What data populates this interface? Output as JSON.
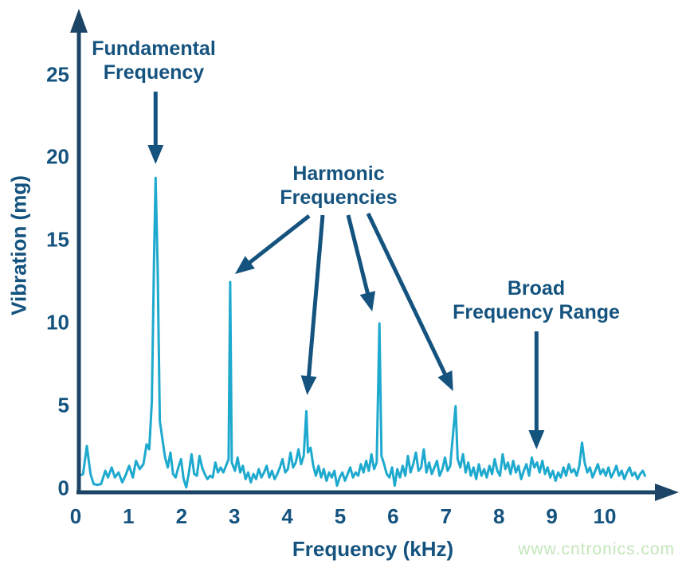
{
  "colors": {
    "text": "#15537f",
    "axis": "#1c4466",
    "line": "#1ea9ce",
    "watermark": "#c3e6ba"
  },
  "watermark": {
    "text": "www.cntronics.com"
  },
  "annotations": {
    "fundamental": {
      "line1": "Fundamental",
      "line2": "Frequency",
      "target_khz": 1.45
    },
    "harmonic": {
      "line1": "Harmonic",
      "line2": "Frequencies",
      "targets_khz": [
        2.86,
        4.3,
        5.68,
        7.12
      ]
    },
    "broad": {
      "line1": "Broad",
      "line2": "Frequency Range",
      "target_khz": 8.65
    }
  },
  "chart_data": {
    "type": "line",
    "title": "",
    "xlabel": "Frequency (kHz)",
    "ylabel": "Vibration (mg)",
    "xlim": [
      0,
      11.3
    ],
    "ylim": [
      0,
      27
    ],
    "x_ticks": [
      0,
      1,
      2,
      3,
      4,
      5,
      6,
      7,
      8,
      9,
      10
    ],
    "y_ticks": [
      0,
      5,
      10,
      15,
      20,
      25
    ],
    "grid": false,
    "legend": false,
    "peaks": {
      "fundamental": {
        "frequency_khz": 1.45,
        "amplitude_mg": 19
      },
      "harmonics": [
        {
          "frequency_khz": 2.86,
          "amplitude_mg": 12.7
        },
        {
          "frequency_khz": 4.3,
          "amplitude_mg": 4.9
        },
        {
          "frequency_khz": 5.68,
          "amplitude_mg": 10.2
        },
        {
          "frequency_khz": 7.12,
          "amplitude_mg": 5.2
        }
      ],
      "broad_range_khz": 8.65
    },
    "series": [
      {
        "name": "vibration-spectrum",
        "points": [
          [
            0.0,
            1.0
          ],
          [
            0.08,
            1.1
          ],
          [
            0.15,
            2.8
          ],
          [
            0.22,
            1.1
          ],
          [
            0.28,
            0.5
          ],
          [
            0.35,
            0.45
          ],
          [
            0.42,
            0.5
          ],
          [
            0.5,
            1.3
          ],
          [
            0.55,
            0.9
          ],
          [
            0.62,
            1.5
          ],
          [
            0.68,
            0.9
          ],
          [
            0.75,
            1.2
          ],
          [
            0.82,
            0.6
          ],
          [
            0.88,
            1.0
          ],
          [
            0.95,
            1.6
          ],
          [
            1.02,
            0.9
          ],
          [
            1.08,
            1.9
          ],
          [
            1.15,
            1.4
          ],
          [
            1.22,
            1.7
          ],
          [
            1.28,
            2.9
          ],
          [
            1.33,
            2.6
          ],
          [
            1.38,
            5.5
          ],
          [
            1.42,
            14.0
          ],
          [
            1.45,
            19.0
          ],
          [
            1.49,
            13.5
          ],
          [
            1.53,
            4.3
          ],
          [
            1.58,
            3.2
          ],
          [
            1.63,
            2.1
          ],
          [
            1.68,
            1.5
          ],
          [
            1.73,
            2.4
          ],
          [
            1.78,
            1.1
          ],
          [
            1.83,
            0.9
          ],
          [
            1.88,
            1.5
          ],
          [
            1.93,
            2.0
          ],
          [
            1.98,
            0.8
          ],
          [
            2.03,
            0.3
          ],
          [
            2.08,
            1.2
          ],
          [
            2.13,
            2.3
          ],
          [
            2.18,
            1.1
          ],
          [
            2.23,
            1.0
          ],
          [
            2.28,
            2.2
          ],
          [
            2.33,
            1.5
          ],
          [
            2.38,
            1.1
          ],
          [
            2.43,
            0.8
          ],
          [
            2.48,
            1.0
          ],
          [
            2.53,
            0.9
          ],
          [
            2.58,
            1.8
          ],
          [
            2.63,
            1.2
          ],
          [
            2.68,
            1.5
          ],
          [
            2.73,
            1.2
          ],
          [
            2.78,
            1.6
          ],
          [
            2.83,
            2.0
          ],
          [
            2.86,
            12.7
          ],
          [
            2.89,
            1.8
          ],
          [
            2.95,
            1.3
          ],
          [
            3.0,
            2.1
          ],
          [
            3.05,
            1.2
          ],
          [
            3.1,
            1.6
          ],
          [
            3.15,
            0.8
          ],
          [
            3.2,
            1.2
          ],
          [
            3.25,
            0.6
          ],
          [
            3.3,
            1.1
          ],
          [
            3.35,
            0.8
          ],
          [
            3.4,
            1.4
          ],
          [
            3.45,
            0.9
          ],
          [
            3.5,
            1.2
          ],
          [
            3.55,
            1.6
          ],
          [
            3.6,
            0.9
          ],
          [
            3.65,
            1.3
          ],
          [
            3.7,
            0.8
          ],
          [
            3.75,
            1.1
          ],
          [
            3.8,
            1.5
          ],
          [
            3.85,
            2.0
          ],
          [
            3.9,
            1.2
          ],
          [
            3.95,
            1.4
          ],
          [
            4.0,
            2.4
          ],
          [
            4.05,
            1.5
          ],
          [
            4.1,
            1.8
          ],
          [
            4.15,
            2.6
          ],
          [
            4.2,
            1.7
          ],
          [
            4.25,
            2.2
          ],
          [
            4.3,
            4.9
          ],
          [
            4.33,
            2.4
          ],
          [
            4.38,
            2.7
          ],
          [
            4.43,
            1.6
          ],
          [
            4.48,
            1.0
          ],
          [
            4.53,
            1.6
          ],
          [
            4.58,
            0.9
          ],
          [
            4.63,
            1.4
          ],
          [
            4.68,
            0.7
          ],
          [
            4.73,
            1.2
          ],
          [
            4.78,
            0.9
          ],
          [
            4.83,
            1.3
          ],
          [
            4.88,
            0.4
          ],
          [
            4.93,
            0.9
          ],
          [
            4.98,
            1.2
          ],
          [
            5.03,
            0.7
          ],
          [
            5.08,
            1.1
          ],
          [
            5.13,
            1.5
          ],
          [
            5.18,
            0.9
          ],
          [
            5.23,
            1.2
          ],
          [
            5.28,
            1.0
          ],
          [
            5.33,
            1.7
          ],
          [
            5.38,
            1.2
          ],
          [
            5.43,
            1.9
          ],
          [
            5.48,
            1.3
          ],
          [
            5.53,
            2.3
          ],
          [
            5.58,
            1.4
          ],
          [
            5.63,
            1.8
          ],
          [
            5.68,
            10.2
          ],
          [
            5.72,
            2.2
          ],
          [
            5.77,
            1.7
          ],
          [
            5.82,
            1.1
          ],
          [
            5.87,
            0.9
          ],
          [
            5.92,
            1.5
          ],
          [
            5.97,
            0.4
          ],
          [
            6.02,
            1.4
          ],
          [
            6.07,
            0.9
          ],
          [
            6.12,
            1.6
          ],
          [
            6.17,
            1.0
          ],
          [
            6.22,
            2.2
          ],
          [
            6.27,
            1.2
          ],
          [
            6.32,
            1.7
          ],
          [
            6.37,
            2.4
          ],
          [
            6.42,
            1.3
          ],
          [
            6.47,
            1.5
          ],
          [
            6.52,
            2.6
          ],
          [
            6.57,
            1.2
          ],
          [
            6.62,
            1.8
          ],
          [
            6.67,
            1.1
          ],
          [
            6.72,
            1.5
          ],
          [
            6.77,
            1.9
          ],
          [
            6.82,
            1.0
          ],
          [
            6.87,
            1.4
          ],
          [
            6.92,
            2.1
          ],
          [
            6.97,
            1.3
          ],
          [
            7.02,
            1.6
          ],
          [
            7.07,
            3.4
          ],
          [
            7.12,
            5.2
          ],
          [
            7.16,
            2.0
          ],
          [
            7.21,
            1.5
          ],
          [
            7.26,
            2.3
          ],
          [
            7.31,
            1.2
          ],
          [
            7.36,
            1.8
          ],
          [
            7.41,
            1.0
          ],
          [
            7.46,
            1.5
          ],
          [
            7.51,
            0.8
          ],
          [
            7.56,
            1.7
          ],
          [
            7.61,
            1.0
          ],
          [
            7.66,
            1.4
          ],
          [
            7.71,
            0.9
          ],
          [
            7.76,
            1.6
          ],
          [
            7.81,
            1.1
          ],
          [
            7.86,
            2.0
          ],
          [
            7.91,
            1.3
          ],
          [
            7.96,
            1.0
          ],
          [
            8.01,
            2.3
          ],
          [
            8.06,
            1.4
          ],
          [
            8.11,
            1.8
          ],
          [
            8.16,
            1.1
          ],
          [
            8.21,
            1.9
          ],
          [
            8.26,
            1.2
          ],
          [
            8.31,
            1.6
          ],
          [
            8.36,
            0.8
          ],
          [
            8.41,
            1.3
          ],
          [
            8.46,
            1.7
          ],
          [
            8.51,
            1.0
          ],
          [
            8.56,
            2.1
          ],
          [
            8.61,
            1.5
          ],
          [
            8.66,
            1.8
          ],
          [
            8.71,
            1.2
          ],
          [
            8.76,
            1.9
          ],
          [
            8.81,
            1.1
          ],
          [
            8.86,
            1.5
          ],
          [
            8.91,
            0.9
          ],
          [
            8.96,
            1.3
          ],
          [
            9.01,
            0.7
          ],
          [
            9.06,
            1.2
          ],
          [
            9.11,
            0.9
          ],
          [
            9.16,
            1.5
          ],
          [
            9.21,
            1.0
          ],
          [
            9.26,
            1.7
          ],
          [
            9.31,
            1.2
          ],
          [
            9.36,
            1.4
          ],
          [
            9.41,
            1.0
          ],
          [
            9.46,
            1.6
          ],
          [
            9.51,
            3.0
          ],
          [
            9.56,
            1.8
          ],
          [
            9.61,
            1.2
          ],
          [
            9.66,
            1.5
          ],
          [
            9.71,
            0.9
          ],
          [
            9.76,
            1.3
          ],
          [
            9.81,
            1.7
          ],
          [
            9.86,
            1.1
          ],
          [
            9.91,
            1.4
          ],
          [
            9.96,
            1.0
          ],
          [
            10.01,
            1.5
          ],
          [
            10.06,
            0.9
          ],
          [
            10.11,
            1.2
          ],
          [
            10.16,
            1.6
          ],
          [
            10.21,
            1.0
          ],
          [
            10.26,
            1.3
          ],
          [
            10.31,
            0.8
          ],
          [
            10.36,
            1.2
          ],
          [
            10.41,
            1.5
          ],
          [
            10.46,
            1.0
          ],
          [
            10.51,
            1.2
          ],
          [
            10.56,
            0.8
          ],
          [
            10.61,
            1.1
          ],
          [
            10.66,
            1.3
          ],
          [
            10.7,
            1.0
          ]
        ]
      }
    ]
  }
}
